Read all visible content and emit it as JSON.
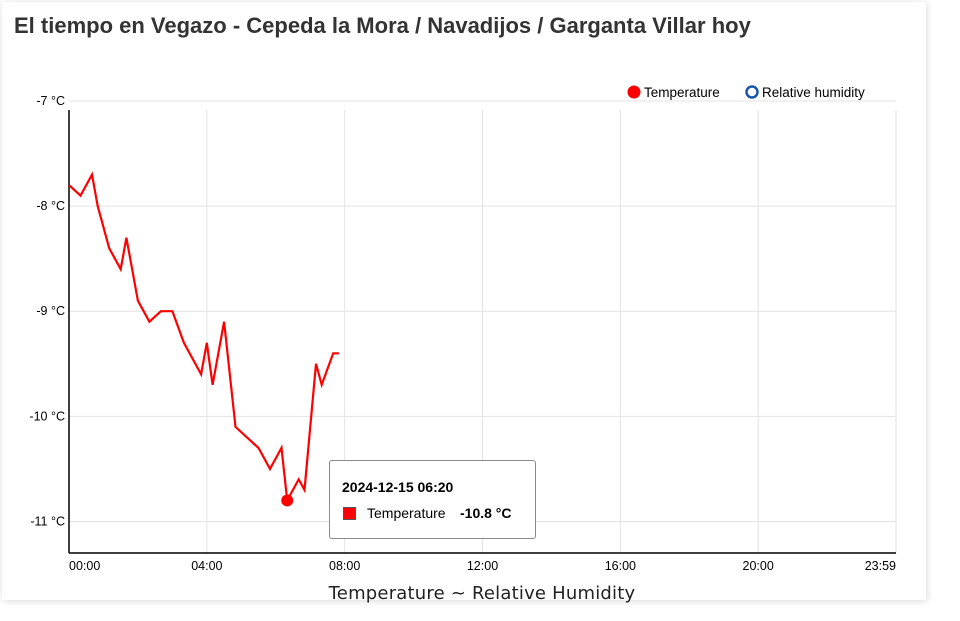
{
  "page": {
    "title": "El tiempo en Vegazo - Cepeda la Mora / Navadijos / Garganta Villar hoy"
  },
  "chart_data": {
    "type": "line",
    "caption": "Temperature ~ Relative Humidity",
    "y_ticks": [
      "-7 °C",
      "-8 °C",
      "-9 °C",
      "-10 °C",
      "-11 °C"
    ],
    "y_tick_values": [
      -7,
      -8,
      -9,
      -10,
      -11
    ],
    "ylim": [
      -11.3,
      -7
    ],
    "x_ticks": [
      "00:00",
      "04:00",
      "08:00",
      "12:00",
      "16:00",
      "20:00",
      "23:59"
    ],
    "x_tick_hours": [
      0,
      4,
      8,
      12,
      16,
      20,
      24
    ],
    "xlim_hours": [
      0,
      24
    ],
    "grid": true,
    "legend_position": "top-right",
    "legend": [
      {
        "name": "Temperature",
        "marker": "filled-circle",
        "color": "#ff0000"
      },
      {
        "name": "Relative humidity",
        "marker": "hollow-circle",
        "color": "#1a56a8"
      }
    ],
    "series": [
      {
        "name": "Temperature",
        "color": "#ff0000",
        "points": [
          [
            "00:00",
            -7.8
          ],
          [
            "00:20",
            -7.9
          ],
          [
            "00:40",
            -7.7
          ],
          [
            "00:50",
            -8.0
          ],
          [
            "01:10",
            -8.4
          ],
          [
            "01:30",
            -8.6
          ],
          [
            "01:40",
            -8.3
          ],
          [
            "02:00",
            -8.9
          ],
          [
            "02:20",
            -9.1
          ],
          [
            "02:40",
            -9.0
          ],
          [
            "03:00",
            -9.0
          ],
          [
            "03:20",
            -9.3
          ],
          [
            "03:50",
            -9.6
          ],
          [
            "04:00",
            -9.3
          ],
          [
            "04:10",
            -9.7
          ],
          [
            "04:30",
            -9.1
          ],
          [
            "04:50",
            -10.1
          ],
          [
            "05:10",
            -10.2
          ],
          [
            "05:30",
            -10.3
          ],
          [
            "05:50",
            -10.5
          ],
          [
            "06:10",
            -10.3
          ],
          [
            "06:20",
            -10.8
          ],
          [
            "06:40",
            -10.6
          ],
          [
            "06:50",
            -10.7
          ],
          [
            "07:10",
            -9.5
          ],
          [
            "07:20",
            -9.7
          ],
          [
            "07:40",
            -9.4
          ],
          [
            "07:50",
            -9.4
          ]
        ]
      },
      {
        "name": "Relative humidity",
        "color": "#1a56a8",
        "points": []
      }
    ],
    "highlight_index": 21,
    "tooltip": {
      "date": "2024-12-15 06:20",
      "series_label": "Temperature",
      "value": "-10.8 °C"
    }
  }
}
